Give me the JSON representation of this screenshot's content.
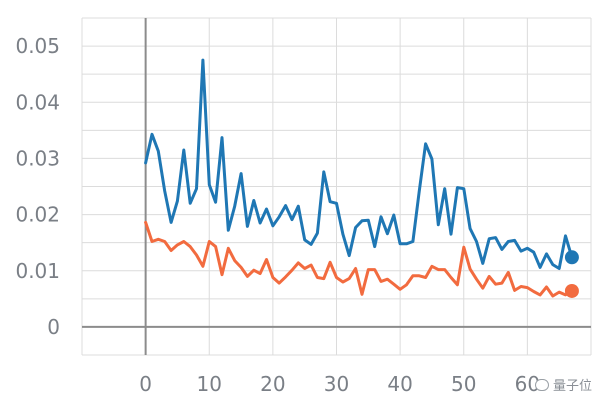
{
  "chart_data": {
    "type": "line",
    "title": "",
    "xlabel": "",
    "ylabel": "",
    "xlim": [
      -10,
      70
    ],
    "ylim": [
      -0.005,
      0.055
    ],
    "grid": true,
    "x_ticks": [
      0,
      10,
      20,
      30,
      40,
      50,
      60
    ],
    "x_tick_labels": [
      "0",
      "10",
      "20",
      "30",
      "40",
      "50",
      "60"
    ],
    "y_ticks": [
      0,
      0.01,
      0.02,
      0.03,
      0.04,
      0.05
    ],
    "y_tick_labels": [
      "0",
      "0.01",
      "0.02",
      "0.03",
      "0.04",
      "0.05"
    ],
    "series": [
      {
        "color": "#1f77b4",
        "end_marker": true,
        "x": [
          0,
          1,
          2,
          3,
          4,
          5,
          6,
          7,
          8,
          9,
          10,
          11,
          12,
          13,
          14,
          15,
          16,
          17,
          18,
          19,
          20,
          21,
          22,
          23,
          24,
          25,
          26,
          27,
          28,
          29,
          30,
          31,
          32,
          33,
          34,
          35,
          36,
          37,
          38,
          39,
          40,
          41,
          42,
          43,
          44,
          45,
          46,
          47,
          48,
          49,
          50,
          51,
          52,
          53,
          54,
          55,
          56,
          57,
          58,
          59,
          60,
          61,
          62,
          63,
          64,
          65,
          66,
          67
        ],
        "values": [
          0.0292,
          0.0343,
          0.0313,
          0.0242,
          0.0186,
          0.0224,
          0.0315,
          0.022,
          0.0246,
          0.0475,
          0.0253,
          0.0222,
          0.0337,
          0.0172,
          0.0215,
          0.0273,
          0.0179,
          0.0225,
          0.0185,
          0.021,
          0.018,
          0.0196,
          0.0216,
          0.0191,
          0.0215,
          0.0155,
          0.0147,
          0.0167,
          0.0276,
          0.0223,
          0.022,
          0.0165,
          0.0127,
          0.0177,
          0.0189,
          0.019,
          0.0143,
          0.0196,
          0.0166,
          0.0199,
          0.0148,
          0.0148,
          0.0152,
          0.0241,
          0.0326,
          0.0299,
          0.0182,
          0.0246,
          0.0165,
          0.0248,
          0.0246,
          0.0175,
          0.0152,
          0.0113,
          0.0157,
          0.0159,
          0.0138,
          0.0152,
          0.0154,
          0.0135,
          0.014,
          0.0133,
          0.0106,
          0.013,
          0.0111,
          0.0104,
          0.0162,
          0.0124
        ]
      },
      {
        "color": "#f26b3f",
        "end_marker": true,
        "x": [
          0,
          1,
          2,
          3,
          4,
          5,
          6,
          7,
          8,
          9,
          10,
          11,
          12,
          13,
          14,
          15,
          16,
          17,
          18,
          19,
          20,
          21,
          22,
          23,
          24,
          25,
          26,
          27,
          28,
          29,
          30,
          31,
          32,
          33,
          34,
          35,
          36,
          37,
          38,
          39,
          40,
          41,
          42,
          43,
          44,
          45,
          46,
          47,
          48,
          49,
          50,
          51,
          52,
          53,
          54,
          55,
          56,
          57,
          58,
          59,
          60,
          61,
          62,
          63,
          64,
          65,
          66,
          67
        ],
        "values": [
          0.0186,
          0.0152,
          0.0156,
          0.0152,
          0.0136,
          0.0146,
          0.0152,
          0.0143,
          0.0128,
          0.0108,
          0.0152,
          0.0143,
          0.0093,
          0.014,
          0.0118,
          0.0106,
          0.009,
          0.0101,
          0.0095,
          0.012,
          0.0088,
          0.0078,
          0.0089,
          0.0101,
          0.0114,
          0.0104,
          0.011,
          0.0088,
          0.0086,
          0.0115,
          0.0088,
          0.008,
          0.0086,
          0.0104,
          0.0058,
          0.0102,
          0.0102,
          0.0081,
          0.0085,
          0.0076,
          0.0067,
          0.0075,
          0.0091,
          0.0091,
          0.0088,
          0.0108,
          0.0102,
          0.0102,
          0.0088,
          0.0075,
          0.0142,
          0.0103,
          0.0085,
          0.0069,
          0.009,
          0.0076,
          0.0078,
          0.0097,
          0.0065,
          0.0072,
          0.007,
          0.0063,
          0.0057,
          0.0071,
          0.0055,
          0.0062,
          0.0057,
          0.0064
        ]
      }
    ]
  },
  "watermark": {
    "text": "量子位",
    "icon": "wechat-icon"
  }
}
